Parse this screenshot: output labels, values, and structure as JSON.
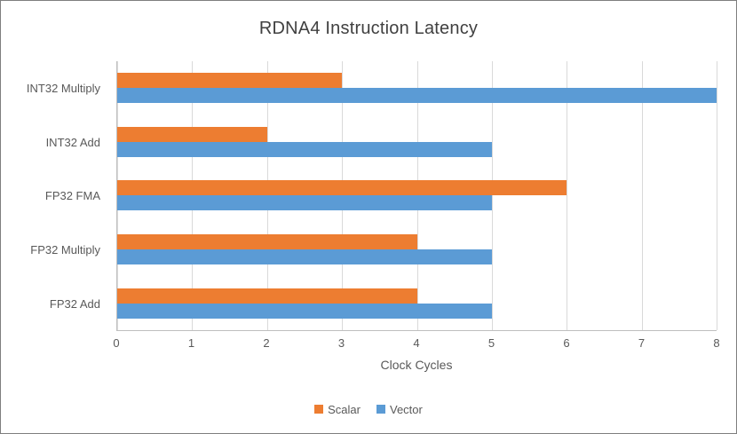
{
  "window": {
    "background": "#FFFFFF",
    "border_color": "#7F7F7F"
  },
  "chart_data": {
    "type": "bar",
    "orientation": "horizontal",
    "title": "RDNA4 Instruction Latency",
    "xlabel": "Clock Cycles",
    "ylabel": "",
    "categories": [
      "INT32 Multiply",
      "INT32 Add",
      "FP32 FMA",
      "FP32 Multiply",
      "FP32 Add"
    ],
    "category_order": "top-to-bottom",
    "series": [
      {
        "name": "Scalar",
        "color": "#ED7D31",
        "values": [
          3,
          2,
          6,
          4,
          4
        ]
      },
      {
        "name": "Vector",
        "color": "#5B9BD5",
        "values": [
          8,
          5,
          5,
          5,
          5
        ]
      }
    ],
    "xlim": [
      0,
      8
    ],
    "xticks": [
      0,
      1,
      2,
      3,
      4,
      5,
      6,
      7,
      8
    ],
    "grid": "vertical",
    "gridline_color": "#D9D9D9",
    "axis_line_color": "#BFBFBF",
    "axis_text_color": "#595959",
    "title_color": "#404040",
    "legend_position": "bottom"
  }
}
